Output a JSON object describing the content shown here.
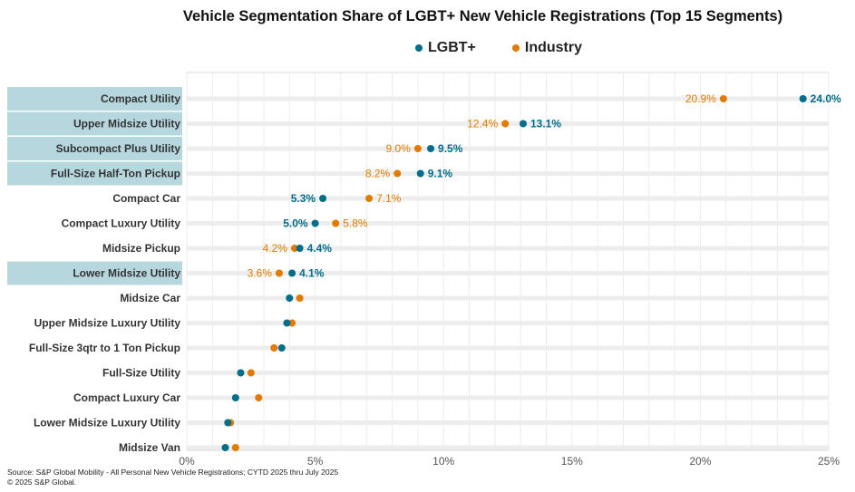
{
  "chart_data": {
    "type": "dot",
    "title": "Vehicle Segmentation Share of LGBT+ New Vehicle Registrations (Top 15 Segments)",
    "xlim": [
      0,
      25
    ],
    "xticks": [
      "0%",
      "5%",
      "10%",
      "15%",
      "20%",
      "25%"
    ],
    "grid": true,
    "legend_position": "top",
    "categories": [
      "Compact Utility",
      "Upper Midsize Utility",
      "Subcompact Plus Utility",
      "Full-Size Half-Ton Pickup",
      "Compact Car",
      "Compact Luxury Utility",
      "Midsize Pickup",
      "Lower Midsize Utility",
      "Midsize Car",
      "Upper Midsize Luxury Utility",
      "Full-Size 3qtr to 1 Ton Pickup",
      "Full-Size Utility",
      "Compact Luxury Car",
      "Lower Midsize Luxury Utility",
      "Midsize Van"
    ],
    "highlighted": [
      "Compact Utility",
      "Upper Midsize Utility",
      "Subcompact Plus Utility",
      "Full-Size Half-Ton Pickup",
      "Lower Midsize Utility"
    ],
    "series": [
      {
        "name": "LGBT+",
        "color": "#006E8A",
        "values": [
          24.0,
          13.1,
          9.5,
          9.1,
          5.3,
          5.0,
          4.4,
          4.1,
          4.0,
          3.9,
          3.7,
          2.1,
          1.9,
          1.6,
          1.5
        ],
        "labels": [
          "24.0%",
          "13.1%",
          "9.5%",
          "9.1%",
          "5.3%",
          "5.0%",
          "4.4%",
          "4.1%",
          "",
          "",
          "",
          "",
          "",
          "",
          ""
        ]
      },
      {
        "name": "Industry",
        "color": "#E07B00",
        "values": [
          20.9,
          12.4,
          9.0,
          8.2,
          7.1,
          5.8,
          4.2,
          3.6,
          4.4,
          4.1,
          3.4,
          2.5,
          2.8,
          1.7,
          1.9
        ],
        "labels": [
          "20.9%",
          "12.4%",
          "9.0%",
          "8.2%",
          "7.1%",
          "5.8%",
          "4.2%",
          "3.6%",
          "",
          "",
          "",
          "",
          "",
          "",
          ""
        ]
      }
    ]
  },
  "source": "Source: S&P Global Mobility - All Personal New Vehicle Registrations; CYTD 2025 thru July 2025",
  "copyright": "© 2025 S&P Global."
}
